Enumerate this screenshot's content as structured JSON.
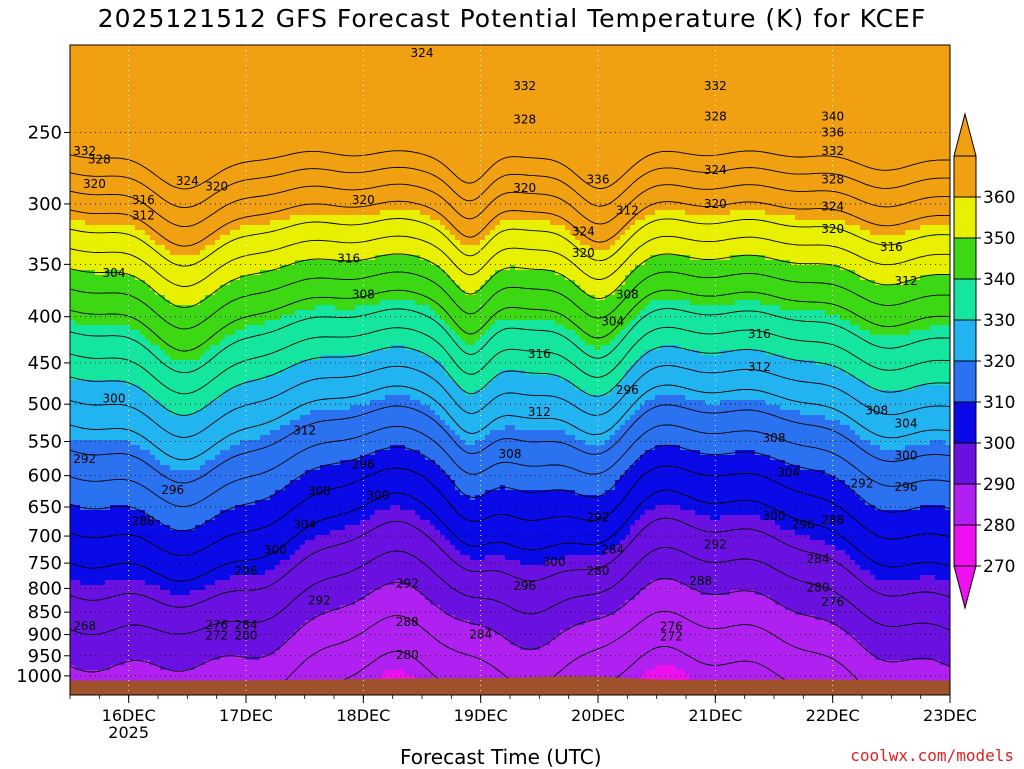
{
  "title": "2025121512 GFS Forecast Potential Temperature (K) for KCEF",
  "x_axis_label": "Forecast Time (UTC)",
  "watermark": "coolwx.com/models",
  "chart_data": {
    "type": "heatmap",
    "title": "2025121512 GFS Forecast Potential Temperature (K) for KCEF",
    "xlabel": "Forecast Time (UTC)",
    "ylabel": "",
    "y_axis_scale": "pressure (log), inverted",
    "y_ticks": [
      250,
      300,
      350,
      400,
      450,
      500,
      550,
      600,
      650,
      700,
      750,
      800,
      850,
      900,
      950,
      1000
    ],
    "y_range": [
      200,
      1050
    ],
    "x_ticks": [
      "16DEC",
      "17DEC",
      "18DEC",
      "19DEC",
      "20DEC",
      "21DEC",
      "22DEC",
      "23DEC"
    ],
    "x_tick_sublabel": "2025",
    "x_range": [
      "2025-12-15 12:00",
      "2025-12-23 00:00"
    ],
    "grid": "dotted",
    "colorbar": {
      "levels": [
        270,
        280,
        290,
        300,
        310,
        320,
        330,
        340,
        350,
        360
      ],
      "colors": [
        "#ee10ee",
        "#b020f0",
        "#6a10e0",
        "#0a0ae8",
        "#2a72f0",
        "#22b4f0",
        "#14e6a0",
        "#3cd814",
        "#e8f000",
        "#f0a010"
      ],
      "extend": "both"
    },
    "contour_labels": [
      {
        "t": "2025-12-15 15:00",
        "p": 262,
        "v": 332
      },
      {
        "t": "2025-12-15 18:00",
        "p": 268,
        "v": 328
      },
      {
        "t": "2025-12-15 17:00",
        "p": 285,
        "v": 320
      },
      {
        "t": "2025-12-16 12:00",
        "p": 283,
        "v": 324
      },
      {
        "t": "2025-12-16 03:00",
        "p": 297,
        "v": 316
      },
      {
        "t": "2025-12-16 03:00",
        "p": 309,
        "v": 312
      },
      {
        "t": "2025-12-15 21:00",
        "p": 358,
        "v": 304
      },
      {
        "t": "2025-12-15 21:00",
        "p": 493,
        "v": 300
      },
      {
        "t": "2025-12-15 15:00",
        "p": 575,
        "v": 292
      },
      {
        "t": "2025-12-16 09:00",
        "p": 622,
        "v": 296
      },
      {
        "t": "2025-12-16 03:00",
        "p": 674,
        "v": 288
      },
      {
        "t": "2025-12-15 15:00",
        "p": 880,
        "v": 268
      },
      {
        "t": "2025-12-16 18:00",
        "p": 287,
        "v": 320
      },
      {
        "t": "2025-12-18 12:00",
        "p": 204,
        "v": 324
      },
      {
        "t": "2025-12-18 00:00",
        "p": 297,
        "v": 320
      },
      {
        "t": "2025-12-17 21:00",
        "p": 345,
        "v": 316
      },
      {
        "t": "2025-12-18 00:00",
        "p": 378,
        "v": 308
      },
      {
        "t": "2025-12-17 12:00",
        "p": 535,
        "v": 312
      },
      {
        "t": "2025-12-17 15:00",
        "p": 624,
        "v": 308
      },
      {
        "t": "2025-12-17 12:00",
        "p": 680,
        "v": 304
      },
      {
        "t": "2025-12-17 06:00",
        "p": 725,
        "v": 300
      },
      {
        "t": "2025-12-17 00:00",
        "p": 765,
        "v": 296
      },
      {
        "t": "2025-12-17 15:00",
        "p": 825,
        "v": 292
      },
      {
        "t": "2025-12-18 00:00",
        "p": 583,
        "v": 296
      },
      {
        "t": "2025-12-18 03:00",
        "p": 631,
        "v": 300
      },
      {
        "t": "2025-12-18 09:00",
        "p": 790,
        "v": 292
      },
      {
        "t": "2025-12-18 09:00",
        "p": 872,
        "v": 288
      },
      {
        "t": "2025-12-18 09:00",
        "p": 948,
        "v": 280
      },
      {
        "t": "2025-12-16 18:00",
        "p": 878,
        "v": 276
      },
      {
        "t": "2025-12-16 18:00",
        "p": 902,
        "v": 272
      },
      {
        "t": "2025-12-17 00:00",
        "p": 878,
        "v": 284
      },
      {
        "t": "2025-12-17 00:00",
        "p": 902,
        "v": 280
      },
      {
        "t": "2025-12-19 09:00",
        "p": 222,
        "v": 332
      },
      {
        "t": "2025-12-19 09:00",
        "p": 242,
        "v": 328
      },
      {
        "t": "2025-12-19 09:00",
        "p": 288,
        "v": 320
      },
      {
        "t": "2025-12-19 12:00",
        "p": 440,
        "v": 316
      },
      {
        "t": "2025-12-19 12:00",
        "p": 510,
        "v": 312
      },
      {
        "t": "2025-12-19 06:00",
        "p": 568,
        "v": 308
      },
      {
        "t": "2025-12-19 15:00",
        "p": 748,
        "v": 300
      },
      {
        "t": "2025-12-19 09:00",
        "p": 795,
        "v": 296
      },
      {
        "t": "2025-12-19 00:00",
        "p": 900,
        "v": 284
      },
      {
        "t": "2025-12-20 00:00",
        "p": 282,
        "v": 336
      },
      {
        "t": "2025-12-19 21:00",
        "p": 322,
        "v": 324
      },
      {
        "t": "2025-12-19 21:00",
        "p": 340,
        "v": 320
      },
      {
        "t": "2025-12-20 06:00",
        "p": 305,
        "v": 312
      },
      {
        "t": "2025-12-20 06:00",
        "p": 378,
        "v": 308
      },
      {
        "t": "2025-12-20 03:00",
        "p": 405,
        "v": 304
      },
      {
        "t": "2025-12-20 06:00",
        "p": 482,
        "v": 296
      },
      {
        "t": "2025-12-20 00:00",
        "p": 668,
        "v": 292
      },
      {
        "t": "2025-12-20 03:00",
        "p": 724,
        "v": 284
      },
      {
        "t": "2025-12-20 00:00",
        "p": 765,
        "v": 280
      },
      {
        "t": "2025-12-20 15:00",
        "p": 882,
        "v": 276
      },
      {
        "t": "2025-12-20 15:00",
        "p": 905,
        "v": 272
      },
      {
        "t": "2025-12-21 00:00",
        "p": 222,
        "v": 332
      },
      {
        "t": "2025-12-21 00:00",
        "p": 240,
        "v": 328
      },
      {
        "t": "2025-12-21 00:00",
        "p": 275,
        "v": 324
      },
      {
        "t": "2025-12-21 00:00",
        "p": 300,
        "v": 320
      },
      {
        "t": "2025-12-21 09:00",
        "p": 418,
        "v": 316
      },
      {
        "t": "2025-12-21 09:00",
        "p": 455,
        "v": 312
      },
      {
        "t": "2025-12-21 12:00",
        "p": 545,
        "v": 308
      },
      {
        "t": "2025-12-21 15:00",
        "p": 595,
        "v": 304
      },
      {
        "t": "2025-12-21 12:00",
        "p": 665,
        "v": 300
      },
      {
        "t": "2025-12-21 18:00",
        "p": 680,
        "v": 296
      },
      {
        "t": "2025-12-21 00:00",
        "p": 715,
        "v": 292
      },
      {
        "t": "2025-12-20 21:00",
        "p": 785,
        "v": 288
      },
      {
        "t": "2025-12-22 00:00",
        "p": 240,
        "v": 340
      },
      {
        "t": "2025-12-22 00:00",
        "p": 250,
        "v": 336
      },
      {
        "t": "2025-12-22 00:00",
        "p": 262,
        "v": 332
      },
      {
        "t": "2025-12-22 00:00",
        "p": 282,
        "v": 328
      },
      {
        "t": "2025-12-22 00:00",
        "p": 302,
        "v": 324
      },
      {
        "t": "2025-12-22 00:00",
        "p": 320,
        "v": 320
      },
      {
        "t": "2025-12-22 12:00",
        "p": 335,
        "v": 316
      },
      {
        "t": "2025-12-22 15:00",
        "p": 365,
        "v": 312
      },
      {
        "t": "2025-12-22 09:00",
        "p": 508,
        "v": 308
      },
      {
        "t": "2025-12-22 15:00",
        "p": 525,
        "v": 304
      },
      {
        "t": "2025-12-22 15:00",
        "p": 570,
        "v": 300
      },
      {
        "t": "2025-12-22 06:00",
        "p": 612,
        "v": 292
      },
      {
        "t": "2025-12-22 15:00",
        "p": 618,
        "v": 296
      },
      {
        "t": "2025-12-22 00:00",
        "p": 672,
        "v": 288
      },
      {
        "t": "2025-12-21 21:00",
        "p": 742,
        "v": 284
      },
      {
        "t": "2025-12-21 21:00",
        "p": 798,
        "v": 280
      },
      {
        "t": "2025-12-22 00:00",
        "p": 828,
        "v": 276
      }
    ]
  }
}
